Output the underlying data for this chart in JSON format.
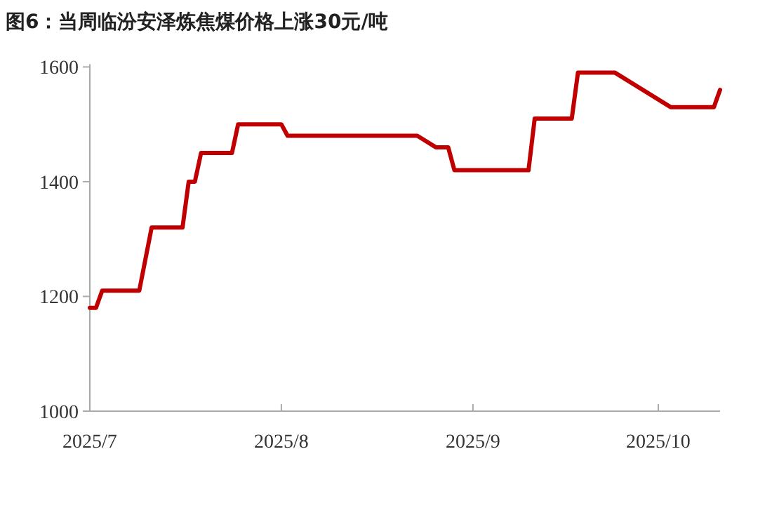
{
  "chart_data": {
    "type": "line",
    "title": "图6：当周临汾安泽炼焦煤价格上涨30元/吨",
    "x": [
      "2025-07-01",
      "2025-07-02",
      "2025-07-03",
      "2025-07-09",
      "2025-07-11",
      "2025-07-16",
      "2025-07-17",
      "2025-07-18",
      "2025-07-19",
      "2025-07-24",
      "2025-07-25",
      "2025-08-01",
      "2025-08-02",
      "2025-08-23",
      "2025-08-26",
      "2025-08-28",
      "2025-08-29",
      "2025-09-10",
      "2025-09-11",
      "2025-09-17",
      "2025-09-18",
      "2025-09-24",
      "2025-10-03",
      "2025-10-10",
      "2025-10-11"
    ],
    "series": [
      {
        "color": "#c00000",
        "values": [
          1180,
          1180,
          1210,
          1210,
          1320,
          1320,
          1400,
          1400,
          1450,
          1450,
          1500,
          1500,
          1480,
          1480,
          1460,
          1460,
          1420,
          1420,
          1510,
          1510,
          1590,
          1590,
          1530,
          1530,
          1560
        ]
      }
    ],
    "xlim": [
      "2025-07-01",
      "2025-10-11"
    ],
    "xticks": [
      {
        "value": "2025-07-01",
        "label": "2025/7"
      },
      {
        "value": "2025-08-01",
        "label": "2025/8"
      },
      {
        "value": "2025-09-01",
        "label": "2025/9"
      },
      {
        "value": "2025-10-01",
        "label": "2025/10"
      }
    ],
    "ylim": [
      1000,
      1600
    ],
    "yticks": [
      1000,
      1200,
      1400,
      1600
    ],
    "grid": false,
    "marker": "none",
    "line_style": "solid"
  }
}
